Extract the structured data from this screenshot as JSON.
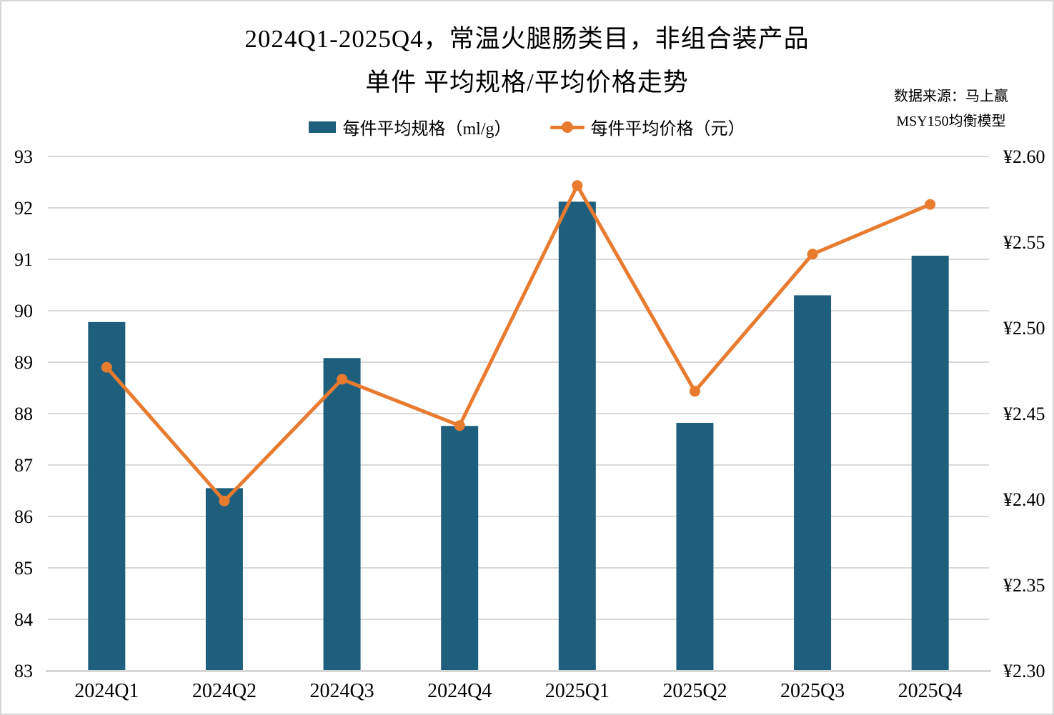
{
  "title": {
    "line1": "2024Q1-2025Q4，常温火腿肠类目，非组合装产品",
    "line2": "单件 平均规格/平均价格走势"
  },
  "source": {
    "line1": "数据来源：马上赢",
    "line2": "MSY150均衡模型"
  },
  "legend": {
    "spec_label": "每件平均规格（ml/g）",
    "price_label": "每件平均价格（元）"
  },
  "colors": {
    "bar": "#1f5f7e",
    "line": "#e97b2f",
    "grid": "#d9d9d9",
    "axis_line": "#d6d6d6",
    "text": "#000000"
  },
  "chart_data": {
    "type": "bar+line combo",
    "title": "2024Q1-2025Q4，常温火腿肠类目，非组合装产品 单件 平均规格/平均价格走势",
    "categories": [
      "2024Q1",
      "2024Q2",
      "2024Q3",
      "2024Q4",
      "2025Q1",
      "2025Q2",
      "2025Q3",
      "2025Q4"
    ],
    "series": [
      {
        "name": "每件平均规格（ml/g）",
        "type": "bar",
        "axis": "left",
        "values": [
          89.78,
          86.55,
          89.08,
          87.76,
          92.12,
          87.82,
          90.3,
          91.07
        ]
      },
      {
        "name": "每件平均价格（元）",
        "type": "line",
        "axis": "right",
        "values": [
          2.477,
          2.399,
          2.47,
          2.443,
          2.583,
          2.463,
          2.543,
          2.572
        ]
      }
    ],
    "left_axis": {
      "min": 83,
      "max": 93,
      "step": 1,
      "tick_labels": [
        "93",
        "92",
        "91",
        "90",
        "89",
        "88",
        "87",
        "86",
        "85",
        "84",
        "83"
      ]
    },
    "right_axis": {
      "min": 2.3,
      "max": 2.6,
      "step": 0.05,
      "tick_labels": [
        "¥2.60",
        "¥2.55",
        "¥2.50",
        "¥2.45",
        "¥2.40",
        "¥2.35",
        "¥2.30"
      ]
    },
    "grid": true,
    "legend_position": "top"
  }
}
